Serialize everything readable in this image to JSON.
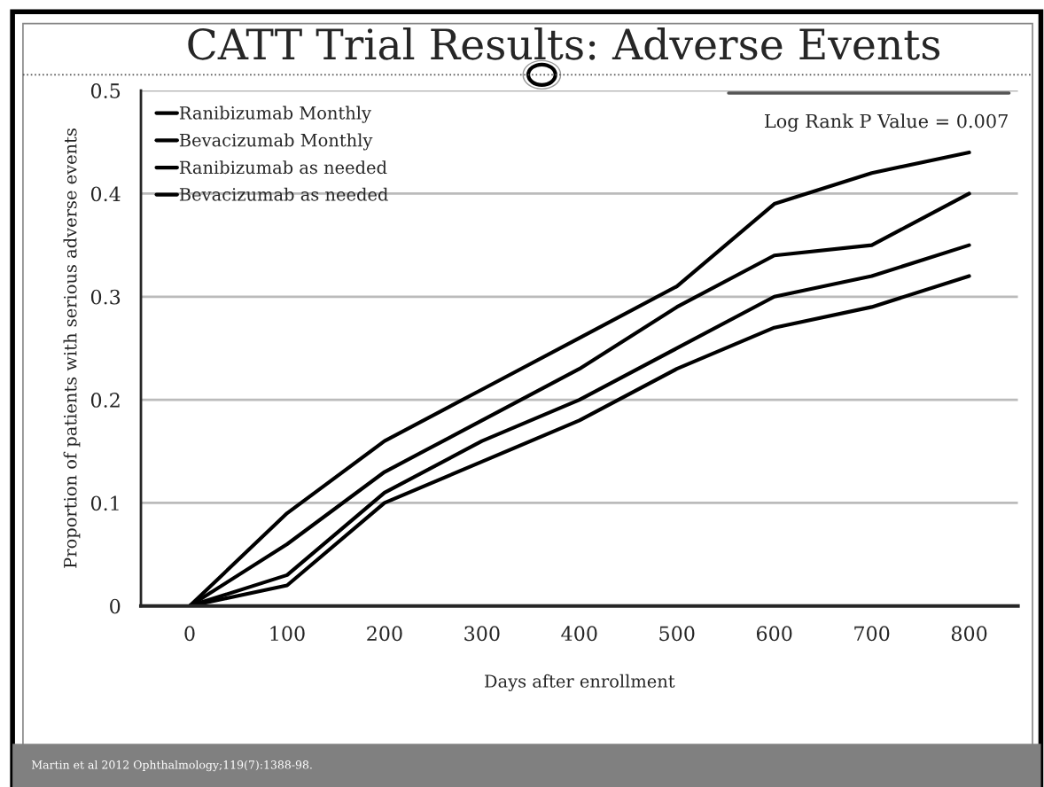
{
  "chart_data": {
    "type": "line",
    "title": "CATT Trial Results: Adverse Events",
    "xlabel": "Days after enrollment",
    "ylabel": "Proportion of patients with serious adverse events",
    "x": [
      0,
      100,
      200,
      300,
      400,
      500,
      600,
      700,
      800
    ],
    "series": [
      {
        "name": "Ranibizumab Monthly",
        "color": "#000000",
        "values": [
          0,
          0.09,
          0.16,
          0.21,
          0.26,
          0.31,
          0.39,
          0.42,
          0.44
        ]
      },
      {
        "name": "Bevacizumab Monthly",
        "color": "#000000",
        "values": [
          0,
          0.06,
          0.13,
          0.18,
          0.23,
          0.29,
          0.34,
          0.35,
          0.4
        ]
      },
      {
        "name": "Ranibizumab as needed",
        "color": "#000000",
        "values": [
          0,
          0.03,
          0.11,
          0.16,
          0.2,
          0.25,
          0.3,
          0.32,
          0.35
        ]
      },
      {
        "name": "Bevacizumab as needed",
        "color": "#000000",
        "values": [
          0,
          0.02,
          0.1,
          0.14,
          0.18,
          0.23,
          0.27,
          0.29,
          0.32
        ]
      }
    ],
    "xlim": [
      -50,
      850
    ],
    "xticks": [
      0,
      100,
      200,
      300,
      400,
      500,
      600,
      700,
      800
    ],
    "ylim": [
      0,
      0.5
    ],
    "yticks": [
      {
        "value": 0,
        "label": "0"
      },
      0.1,
      0.2,
      0.3,
      0.4,
      0.5
    ],
    "grid": "y",
    "legend": "top left",
    "marker": "none",
    "line_style": "solid",
    "annotations": [
      "Log Rank P Value = 0.007",
      "Martin et al 2012 Ophthalmology;119(7):1388-98."
    ]
  }
}
